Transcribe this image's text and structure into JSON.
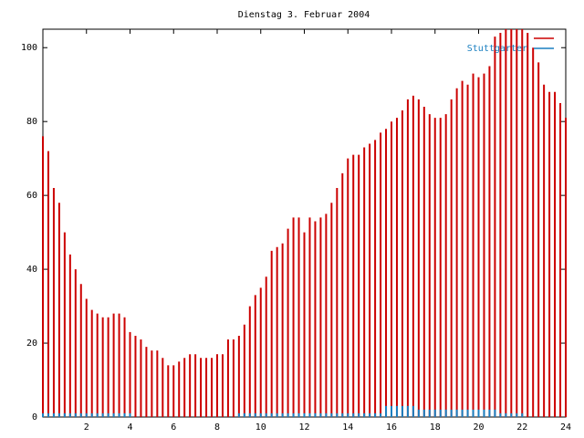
{
  "chart_data": {
    "type": "impulses",
    "title": "Dienstag 3. Februar 2004",
    "x": [
      0,
      0.25,
      0.5,
      0.75,
      1,
      1.25,
      1.5,
      1.75,
      2,
      2.25,
      2.5,
      2.75,
      3,
      3.25,
      3.5,
      3.75,
      4,
      4.25,
      4.5,
      4.75,
      5,
      5.25,
      5.5,
      5.75,
      6,
      6.25,
      6.5,
      6.75,
      7,
      7.25,
      7.5,
      7.75,
      8,
      8.25,
      8.5,
      8.75,
      9,
      9.25,
      9.5,
      9.75,
      10,
      10.25,
      10.5,
      10.75,
      11,
      11.25,
      11.5,
      11.75,
      12,
      12.25,
      12.5,
      12.75,
      13,
      13.25,
      13.5,
      13.75,
      14,
      14.25,
      14.5,
      14.75,
      15,
      15.25,
      15.5,
      15.75,
      16,
      16.25,
      16.5,
      16.75,
      17,
      17.25,
      17.5,
      17.75,
      18,
      18.25,
      18.5,
      18.75,
      19,
      19.25,
      19.5,
      19.75,
      20,
      20.25,
      20.5,
      20.75,
      21,
      21.25,
      21.5,
      21.75,
      22,
      22.25,
      22.5,
      22.75,
      23,
      23.25,
      23.5,
      23.75,
      24
    ],
    "series": [
      {
        "color": "#cc0000",
        "values": [
          76,
          72,
          62,
          58,
          50,
          44,
          40,
          36,
          32,
          29,
          28,
          27,
          27,
          28,
          28,
          27,
          23,
          22,
          21,
          19,
          18,
          18,
          16,
          14,
          14,
          15,
          16,
          17,
          17,
          16,
          16,
          16,
          17,
          17,
          21,
          21,
          22,
          25,
          30,
          33,
          35,
          38,
          45,
          46,
          47,
          51,
          54,
          54,
          50,
          54,
          53,
          54,
          55,
          58,
          62,
          66,
          70,
          71,
          71,
          73,
          74,
          75,
          77,
          78,
          80,
          81,
          83,
          86,
          87,
          86,
          84,
          82,
          81,
          81,
          82,
          86,
          89,
          91,
          90,
          93,
          92,
          93,
          95,
          103,
          104,
          105,
          105,
          105,
          105,
          104,
          100,
          96,
          90,
          88,
          88,
          85,
          81
        ]
      },
      {
        "name": "Stuttgarter",
        "color": "#1a7fc0",
        "values": [
          1,
          1,
          1,
          1,
          1,
          1,
          1,
          1,
          1,
          1,
          1,
          1,
          1,
          1,
          1,
          1,
          1,
          0,
          0,
          0,
          0,
          0,
          0,
          0,
          0,
          0,
          0,
          0,
          0,
          0,
          0,
          0,
          0,
          0,
          0,
          0,
          1,
          1,
          1,
          1,
          1,
          1,
          1,
          1,
          1,
          1,
          1,
          1,
          1,
          1,
          1,
          1,
          1,
          1,
          1,
          1,
          1,
          1,
          1,
          1,
          1,
          1,
          1,
          3,
          3,
          3,
          3,
          3,
          3,
          2,
          2,
          2,
          2,
          2,
          2,
          2,
          2,
          2,
          2,
          2,
          2,
          2,
          2,
          2,
          1,
          1,
          1,
          1,
          1,
          0,
          0,
          0,
          0,
          0,
          0,
          0,
          0
        ]
      }
    ],
    "xlim": [
      0,
      24
    ],
    "xticks": [
      2,
      4,
      6,
      8,
      10,
      12,
      14,
      16,
      18,
      20,
      22,
      24
    ],
    "ylim": [
      0,
      105
    ],
    "yticks": [
      0,
      20,
      40,
      60,
      80,
      100
    ]
  }
}
